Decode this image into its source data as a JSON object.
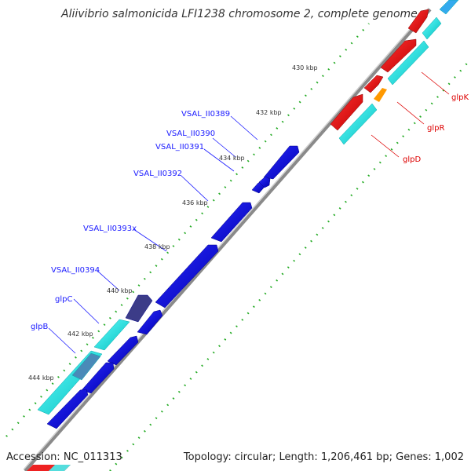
{
  "title": "Aliivibrio salmonicida LFI1238 chromosome 2, complete genome",
  "footer": {
    "accession": "Accession: NC_011313",
    "summary": "Topology: circular; Length: 1,206,461 bp; Genes: 1,002"
  },
  "ticks": [
    "430 kbp",
    "432 kbp",
    "434 kbp",
    "436 kbp",
    "438 kbp",
    "440 kbp",
    "442 kbp",
    "444 kbp"
  ],
  "gene_labels": {
    "forward": [
      "VSAL_II0389",
      "VSAL_II0390",
      "VSAL_II0391",
      "VSAL_II0392",
      "VSAL_II0393x",
      "VSAL_II0394",
      "glpC",
      "glpB"
    ],
    "reverse": [
      "glpK",
      "glpR",
      "glpD"
    ]
  },
  "colors": {
    "forward_gene": "#0000ee",
    "forward_label": "#1a1aff",
    "reverse_gene": "#ee1111",
    "reverse_label": "#dd0000",
    "cds_track": "#11eeee",
    "backbone": "#888888",
    "dotted_track": "#22aa22"
  }
}
